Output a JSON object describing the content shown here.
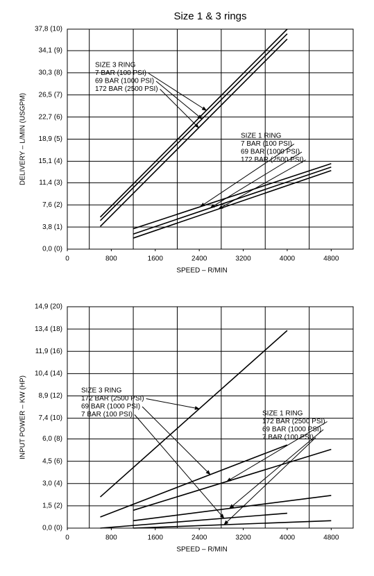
{
  "chart_data": [
    {
      "type": "line",
      "title": "Size 1 & 3 rings",
      "xlabel": "SPEED – R/MIN",
      "ylabel": "DELIVERY – L/MIN (USGPM)",
      "xlim": [
        0,
        5200
      ],
      "xticks": [
        0,
        800,
        1600,
        2400,
        3200,
        4000,
        4800
      ],
      "xgrid": [
        400,
        1200,
        2000,
        2800,
        3600,
        4400
      ],
      "ylim": [
        0,
        37.8
      ],
      "yticks": [
        {
          "value": 0,
          "label": "0,0 (0)"
        },
        {
          "value": 3.8,
          "label": "3,8 (1)"
        },
        {
          "value": 7.6,
          "label": "7,6 (2)"
        },
        {
          "value": 11.4,
          "label": "11,4 (3)"
        },
        {
          "value": 15.1,
          "label": "15,1 (4)"
        },
        {
          "value": 18.9,
          "label": "18,9 (5)"
        },
        {
          "value": 22.7,
          "label": "22,7 (6)"
        },
        {
          "value": 26.5,
          "label": "26,5 (7)"
        },
        {
          "value": 30.3,
          "label": "30,3 (8)"
        },
        {
          "value": 34.1,
          "label": "34,1 (9)"
        },
        {
          "value": 37.8,
          "label": "37,8 (10)"
        }
      ],
      "grid": true,
      "annotations": [
        "SIZE 3 RING",
        "SIZE 1 RING"
      ],
      "series": [
        {
          "name": "7 BAR (100 PSI)",
          "color": "#000000",
          "x": [
            600,
            4000
          ],
          "values": [
            5.5,
            37.8
          ]
        },
        {
          "name": "69 BAR (1000 PSI)",
          "color": "#000000",
          "x": [
            600,
            4000
          ],
          "values": [
            4.9,
            37.0
          ]
        },
        {
          "name": "172 BAR (2500 PSI)",
          "color": "#000000",
          "x": [
            600,
            4000
          ],
          "values": [
            3.9,
            36.1
          ]
        },
        {
          "name": "7 BAR (100 PSI)",
          "color": "#000000",
          "x": [
            1200,
            4800
          ],
          "values": [
            3.5,
            14.7
          ]
        },
        {
          "name": "69 BAR (1000 PSI)",
          "color": "#000000",
          "x": [
            1200,
            4800
          ],
          "values": [
            2.6,
            14.1
          ]
        },
        {
          "name": "172 BAR (2500 PSI)",
          "color": "#000000",
          "x": [
            1200,
            4800
          ],
          "values": [
            1.9,
            13.5
          ]
        }
      ]
    },
    {
      "type": "line",
      "xlabel": "SPEED – R/MIN",
      "ylabel": "INPUT POWER – KW (HP)",
      "xlim": [
        0,
        5200
      ],
      "xticks": [
        0,
        800,
        1600,
        2400,
        3200,
        4000,
        4800
      ],
      "xgrid": [
        400,
        1200,
        2000,
        2800,
        3600,
        4400
      ],
      "ylim": [
        0,
        14.9
      ],
      "yticks": [
        {
          "value": 0,
          "label": "0,0 (0)"
        },
        {
          "value": 1.5,
          "label": "1,5 (2)"
        },
        {
          "value": 3.0,
          "label": "3,0 (4)"
        },
        {
          "value": 4.5,
          "label": "4,5 (6)"
        },
        {
          "value": 6.0,
          "label": "6,0 (8)"
        },
        {
          "value": 7.4,
          "label": "7,4 (10)"
        },
        {
          "value": 8.9,
          "label": "8,9 (12)"
        },
        {
          "value": 10.4,
          "label": "10,4 (14)"
        },
        {
          "value": 11.9,
          "label": "11,9 (16)"
        },
        {
          "value": 13.4,
          "label": "13,4 (18)"
        },
        {
          "value": 14.9,
          "label": "14,9 (20)"
        }
      ],
      "grid": true,
      "annotations": [
        "SIZE 3 RING",
        "SIZE 1 RING"
      ],
      "series": [
        {
          "name": "172 BAR (2500 PSI)",
          "color": "#000000",
          "x": [
            600,
            4000
          ],
          "values": [
            2.1,
            13.3
          ]
        },
        {
          "name": "69 BAR (1000 PSI)",
          "color": "#000000",
          "x": [
            600,
            4000
          ],
          "values": [
            0.75,
            5.6
          ]
        },
        {
          "name": "7 BAR (100 PSI)",
          "color": "#000000",
          "x": [
            600,
            4000
          ],
          "values": [
            0.0,
            1.0
          ]
        },
        {
          "name": "172 BAR (2500 PSI)",
          "color": "#000000",
          "x": [
            1200,
            4800
          ],
          "values": [
            1.2,
            5.3
          ]
        },
        {
          "name": "69 BAR (1000 PSI)",
          "color": "#000000",
          "x": [
            1200,
            4800
          ],
          "values": [
            0.5,
            2.2
          ]
        },
        {
          "name": "7 BAR (100 PSI)",
          "color": "#000000",
          "x": [
            1200,
            4800
          ],
          "values": [
            0.0,
            0.5
          ]
        }
      ]
    }
  ]
}
